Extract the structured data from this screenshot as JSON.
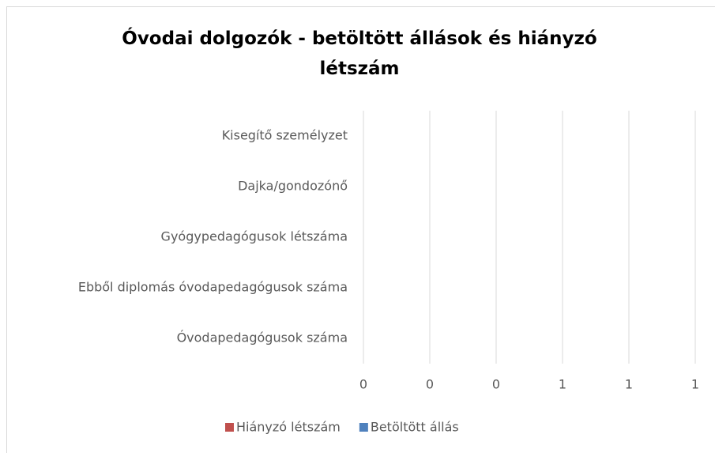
{
  "chart_data": {
    "type": "bar",
    "orientation": "horizontal",
    "title": "Óvodai dolgozók - betöltött állások és hiányzó létszám",
    "categories": [
      "Óvodapedagógusok száma",
      "Ebből diplomás óvodapedagógusok száma",
      "Gyógypedagógusok létszáma",
      "Dajka/gondozónő",
      "Kisegítő személyzet"
    ],
    "series": [
      {
        "name": "Hiányzó létszám",
        "color": "#c0504d",
        "values": [
          null,
          null,
          null,
          null,
          null
        ]
      },
      {
        "name": "Betöltött állás",
        "color": "#4f81bd",
        "values": [
          null,
          null,
          null,
          null,
          null
        ]
      }
    ],
    "xlim": [
      0,
      1
    ],
    "xticks": [
      0,
      {
        "value": 0.2,
        "label": "0"
      },
      {
        "value": 0.4,
        "label": "0"
      },
      {
        "value": 0.6,
        "label": "1"
      },
      {
        "value": 0.8,
        "label": "1"
      },
      1
    ],
    "grid": true,
    "legend": "bottom"
  }
}
